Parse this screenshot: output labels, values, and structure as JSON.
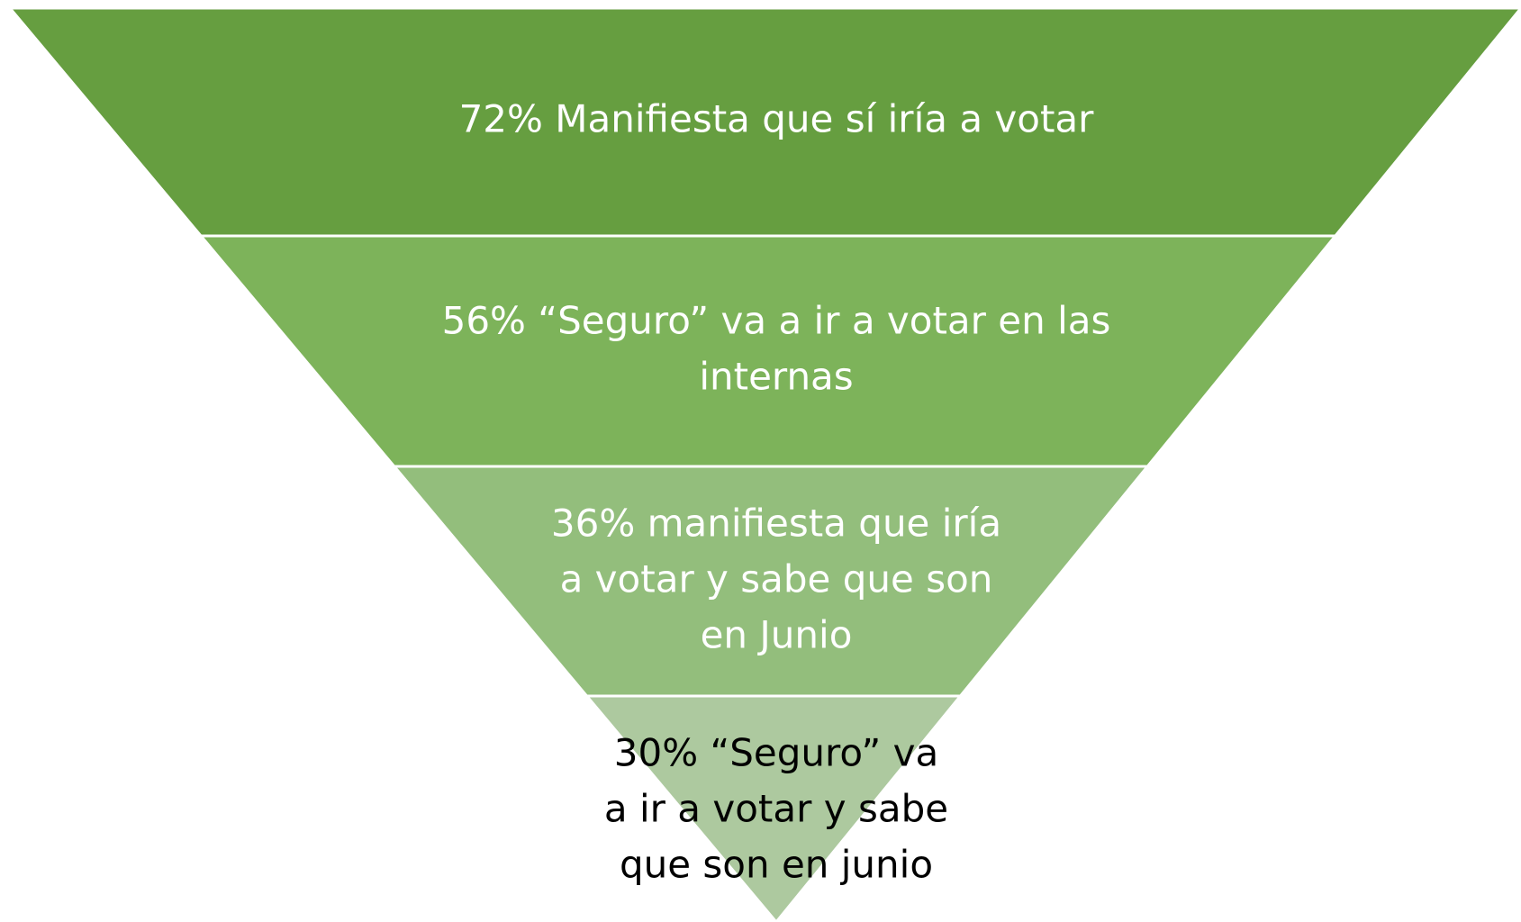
{
  "funnel": {
    "levels": [
      {
        "lines": [
          "72% Manifiesta que sí iría a votar"
        ],
        "color": "#669e40",
        "text_color": "#ffffff"
      },
      {
        "lines": [
          "56% “Seguro” va a ir a votar en las",
          "internas"
        ],
        "color": "#7db35a",
        "text_color": "#ffffff"
      },
      {
        "lines": [
          "36% manifiesta que iría",
          "a votar y sabe que son",
          "en Junio"
        ],
        "color": "#93be7c",
        "text_color": "#ffffff"
      },
      {
        "lines": [
          "30% “Seguro” va",
          "a ir a votar y sabe",
          "que son en junio"
        ],
        "color": "#adc99f",
        "text_color": "#000000"
      }
    ]
  }
}
